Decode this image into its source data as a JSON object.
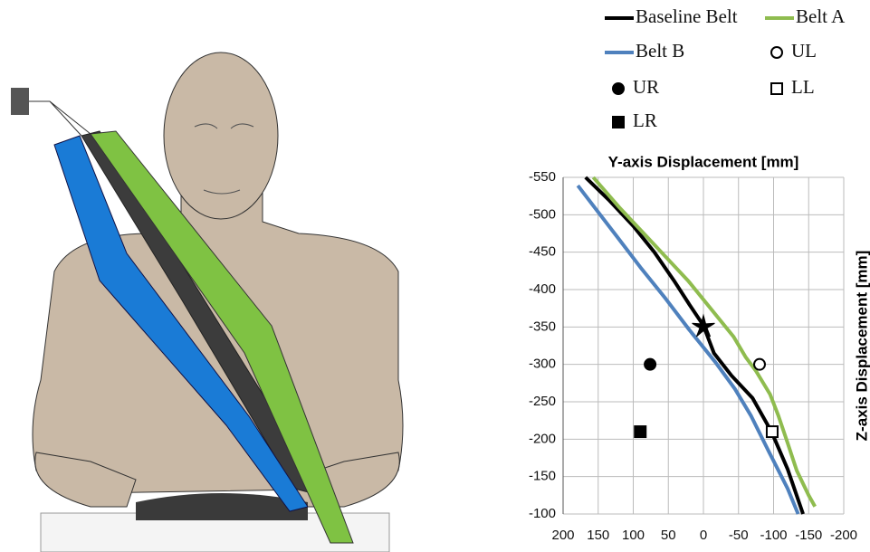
{
  "chart_data": {
    "type": "line",
    "title": "Y-axis Displacement [mm]",
    "y_label": "Z-axis Displacement [mm]",
    "xlim": [
      200,
      -200
    ],
    "xticks": [
      200,
      150,
      100,
      50,
      0,
      -50,
      -100,
      -150,
      -200
    ],
    "ylim": [
      -100,
      -550
    ],
    "yticks": [
      -550,
      -500,
      -450,
      -400,
      -350,
      -300,
      -250,
      -200,
      -150,
      -100
    ],
    "grid": true,
    "series": [
      {
        "name": "Baseline Belt",
        "color": "#000000",
        "x": [
          168,
          135,
          100,
          70,
          42,
          20,
          0,
          -15,
          -40,
          -70,
          -97,
          -120,
          -142
        ],
        "values": [
          -550,
          -520,
          -485,
          -450,
          -412,
          -380,
          -352,
          -315,
          -285,
          -255,
          -210,
          -160,
          -100
        ]
      },
      {
        "name": "Belt A",
        "color": "#8fbc4f",
        "x": [
          157,
          120,
          80,
          50,
          22,
          -10,
          -43,
          -60,
          -75,
          -95,
          -107,
          -120,
          -133,
          -150,
          -159
        ],
        "values": [
          -550,
          -510,
          -470,
          -440,
          -412,
          -375,
          -337,
          -310,
          -291,
          -260,
          -231,
          -195,
          -158,
          -125,
          -110
        ]
      },
      {
        "name": "Belt B",
        "color": "#4f81bd",
        "x": [
          179,
          125,
          90,
          54,
          20,
          -17,
          -45,
          -68,
          -94,
          -120,
          -135
        ],
        "values": [
          -539,
          -473,
          -430,
          -388,
          -346,
          -303,
          -267,
          -231,
          -182,
          -134,
          -100
        ]
      }
    ],
    "points": [
      {
        "marker": "star",
        "filled": true,
        "x": 0,
        "y": -350
      },
      {
        "name": "UL",
        "marker": "circle",
        "filled": false,
        "x": -80,
        "y": -300
      },
      {
        "name": "UR",
        "marker": "circle",
        "filled": true,
        "x": 76,
        "y": -300
      },
      {
        "name": "LL",
        "marker": "square",
        "filled": false,
        "x": -98,
        "y": -210
      },
      {
        "name": "LR",
        "marker": "square",
        "filled": true,
        "x": 90,
        "y": -210
      }
    ]
  }
}
